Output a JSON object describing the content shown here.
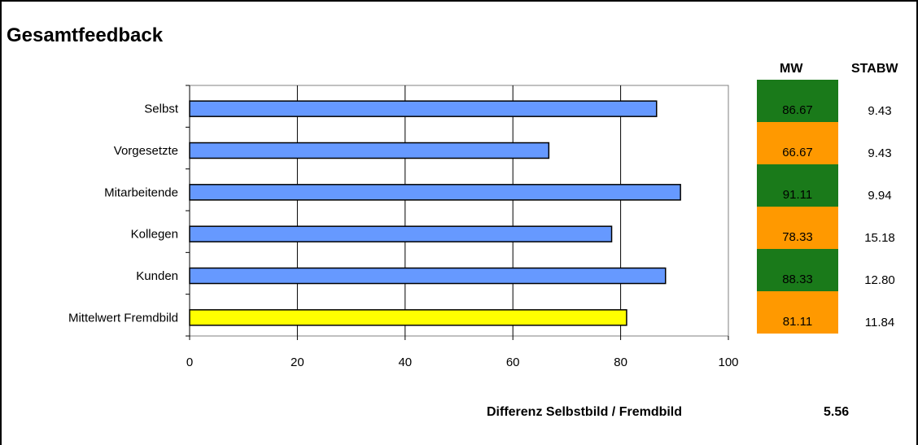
{
  "title": "Gesamtfeedback",
  "table": {
    "mw_header": "MW",
    "stabw_header": "STABW",
    "rows": [
      {
        "mw": "86.67",
        "stabw": "9.43",
        "color": "#1a7a1a"
      },
      {
        "mw": "66.67",
        "stabw": "9.43",
        "color": "#ff9900"
      },
      {
        "mw": "91.11",
        "stabw": "9.94",
        "color": "#1a7a1a"
      },
      {
        "mw": "78.33",
        "stabw": "15.18",
        "color": "#ff9900"
      },
      {
        "mw": "88.33",
        "stabw": "12.80",
        "color": "#1a7a1a"
      },
      {
        "mw": "81.11",
        "stabw": "11.84",
        "color": "#ff9900"
      }
    ]
  },
  "difference": {
    "label": "Differenz Selbstbild / Fremdbild",
    "value": "5.56"
  },
  "chart_data": {
    "type": "bar",
    "orientation": "horizontal",
    "categories": [
      "Selbst",
      "Vorgesetzte",
      "Mitarbeitende",
      "Kollegen",
      "Kunden",
      "Mittelwert Fremdbild"
    ],
    "values": [
      86.67,
      66.67,
      91.11,
      78.33,
      88.33,
      81.11
    ],
    "bar_colors": [
      "#6699ff",
      "#6699ff",
      "#6699ff",
      "#6699ff",
      "#6699ff",
      "#ffff00"
    ],
    "xlim": [
      0,
      100
    ],
    "xticks": [
      "0",
      "20",
      "40",
      "60",
      "80",
      "100"
    ],
    "grid": true
  }
}
